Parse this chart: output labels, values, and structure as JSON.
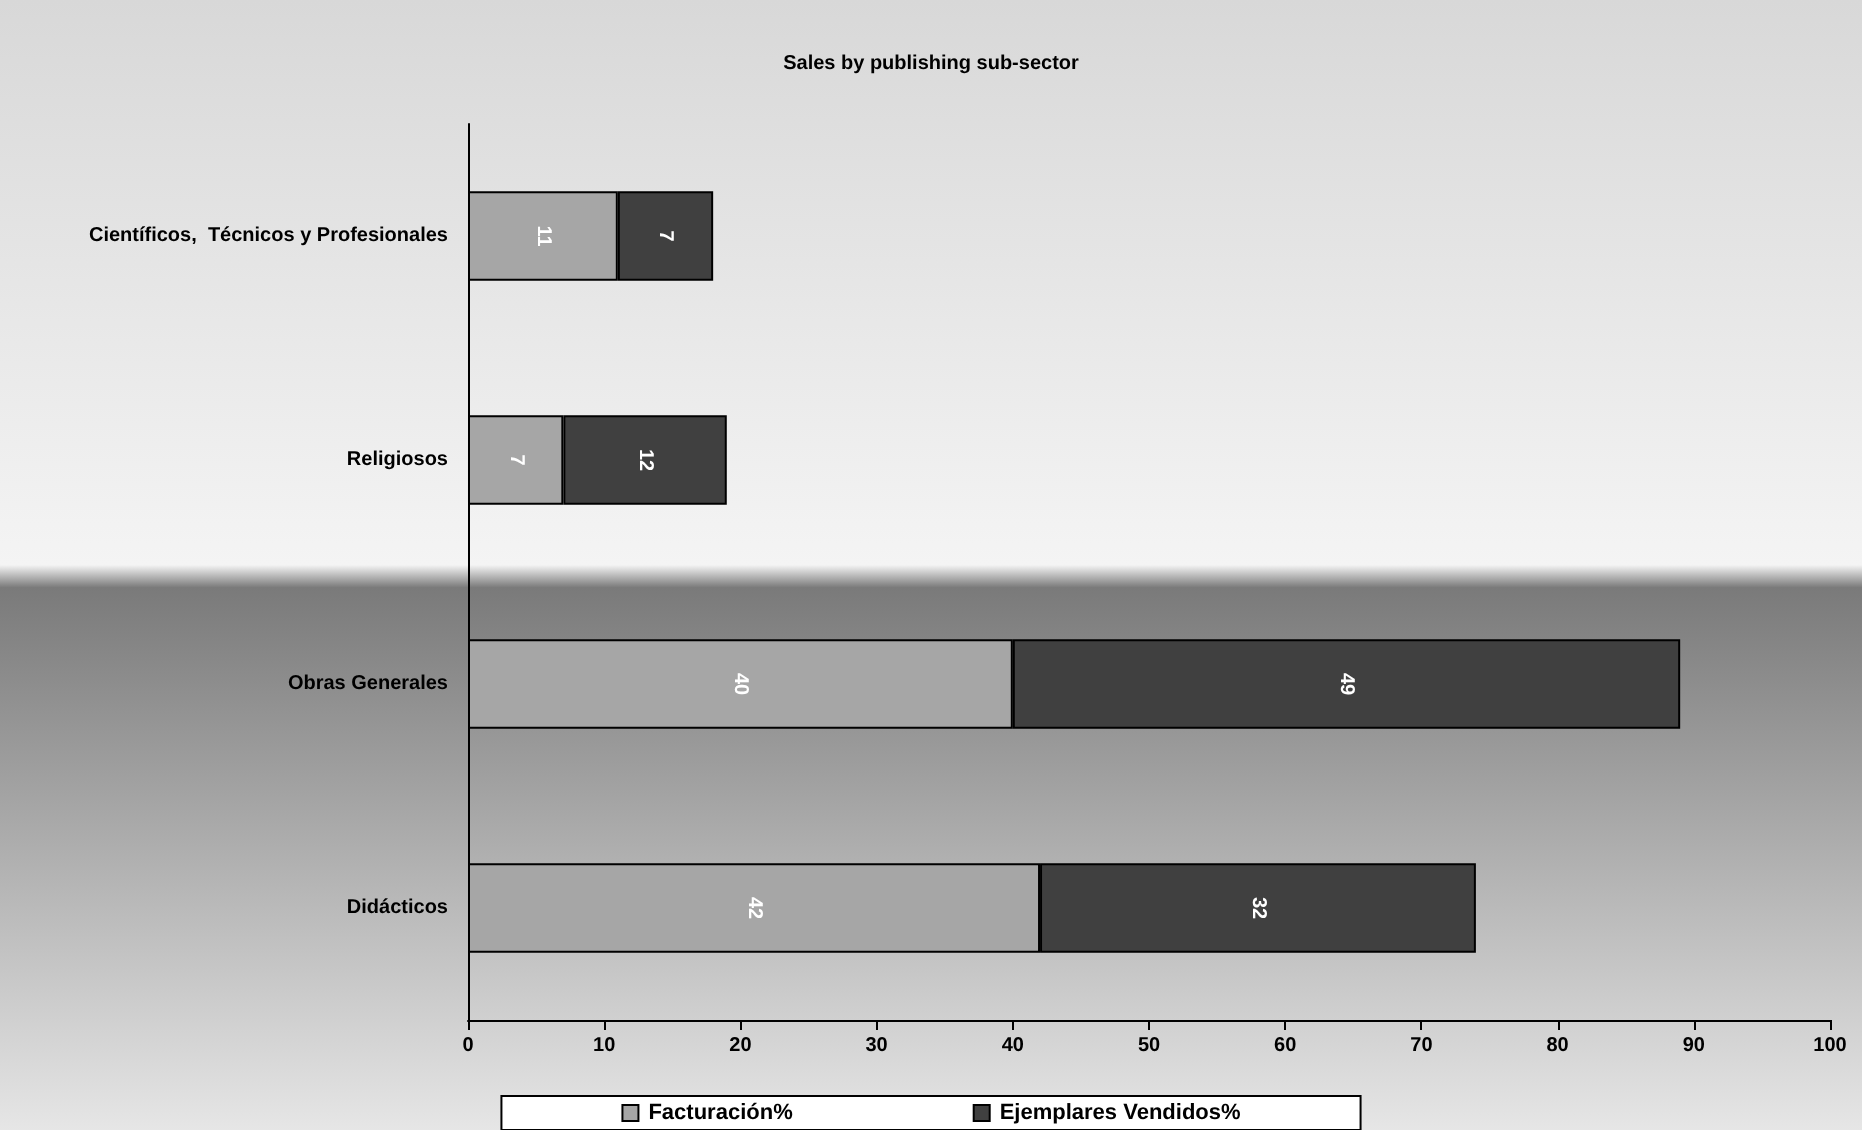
{
  "chart_data": {
    "type": "bar",
    "title": "Sales by publishing sub-sector",
    "orientation": "horizontal",
    "stacked": true,
    "categories": [
      "Científicos,  Técnicos y Profesionales",
      "Religiosos",
      "Obras Generales",
      "Didácticos"
    ],
    "series": [
      {
        "name": "Facturación%",
        "color": "#a6a6a6",
        "values": [
          11,
          7,
          40,
          42
        ]
      },
      {
        "name": "Ejemplares Vendidos%",
        "color": "#404040",
        "values": [
          7,
          12,
          49,
          32
        ]
      }
    ],
    "xlim": [
      0,
      100
    ],
    "xticks": [
      0,
      10,
      20,
      30,
      40,
      50,
      60,
      70,
      80,
      90,
      100
    ],
    "data_labels": true,
    "legend": "bottom",
    "grid": false
  }
}
